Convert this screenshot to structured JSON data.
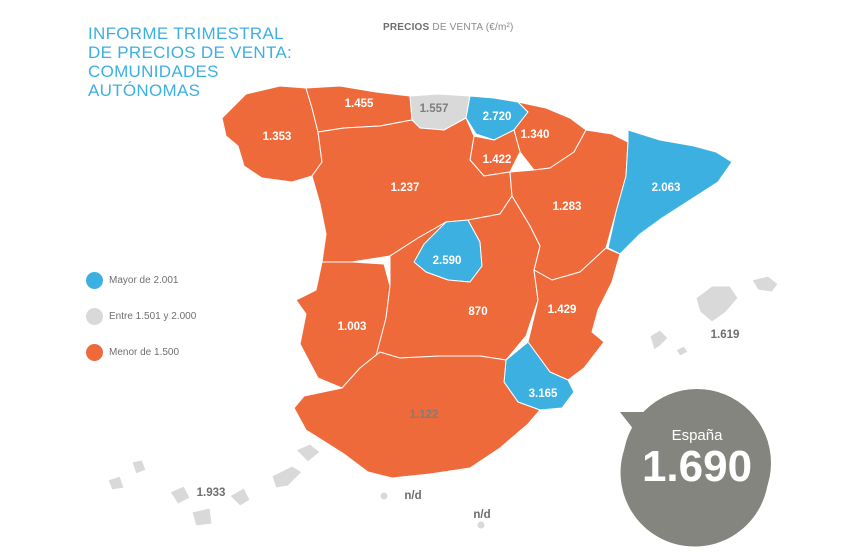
{
  "title": {
    "lines": [
      "INFORME TRIMESTRAL",
      "DE PRECIOS DE VENTA:",
      "COMUNIDADES",
      "AUTÓNOMAS"
    ]
  },
  "subtitle": {
    "bold": "PRECIOS",
    "rest": " DE VENTA (€/m²)"
  },
  "colors": {
    "high": "#3db0e2",
    "mid": "#d9d9d9",
    "low": "#ee6a3b",
    "badge": "#858580"
  },
  "legend": [
    {
      "label": "Mayor de 2.001",
      "color": "#3db0e2"
    },
    {
      "label": "Entre 1.501 y 2.000",
      "color": "#d9d9d9"
    },
    {
      "label": "Menor de 1.500",
      "color": "#ee6a3b"
    }
  ],
  "regions": [
    {
      "name": "Galicia",
      "value": "1.353",
      "category": "low"
    },
    {
      "name": "Asturias",
      "value": "1.455",
      "category": "low"
    },
    {
      "name": "Cantabria",
      "value": "1.557",
      "category": "mid"
    },
    {
      "name": "País Vasco",
      "value": "2.720",
      "category": "high"
    },
    {
      "name": "Navarra",
      "value": "1.340",
      "category": "low"
    },
    {
      "name": "La Rioja",
      "value": "1.422",
      "category": "low"
    },
    {
      "name": "Castilla y León",
      "value": "1.237",
      "category": "low"
    },
    {
      "name": "Aragón",
      "value": "1.283",
      "category": "low"
    },
    {
      "name": "Cataluña",
      "value": "2.063",
      "category": "high"
    },
    {
      "name": "Madrid",
      "value": "2.590",
      "category": "high"
    },
    {
      "name": "Extremadura",
      "value": "1.003",
      "category": "low"
    },
    {
      "name": "Castilla-La Mancha",
      "value": "870",
      "category": "low"
    },
    {
      "name": "Comunidad Valenciana",
      "value": "1.429",
      "category": "low"
    },
    {
      "name": "Baleares",
      "value": "3.165",
      "category": "high"
    },
    {
      "name": "Murcia",
      "value": "1.122",
      "category": "low"
    },
    {
      "name": "Andalucía",
      "value": "1.619",
      "category": "mid"
    },
    {
      "name": "Canarias",
      "value": "1.933",
      "category": "mid"
    },
    {
      "name": "Ceuta",
      "value": "n/d",
      "category": "none"
    },
    {
      "name": "Melilla",
      "value": "n/d",
      "category": "none"
    }
  ],
  "national": {
    "label": "España",
    "value": "1.690"
  }
}
